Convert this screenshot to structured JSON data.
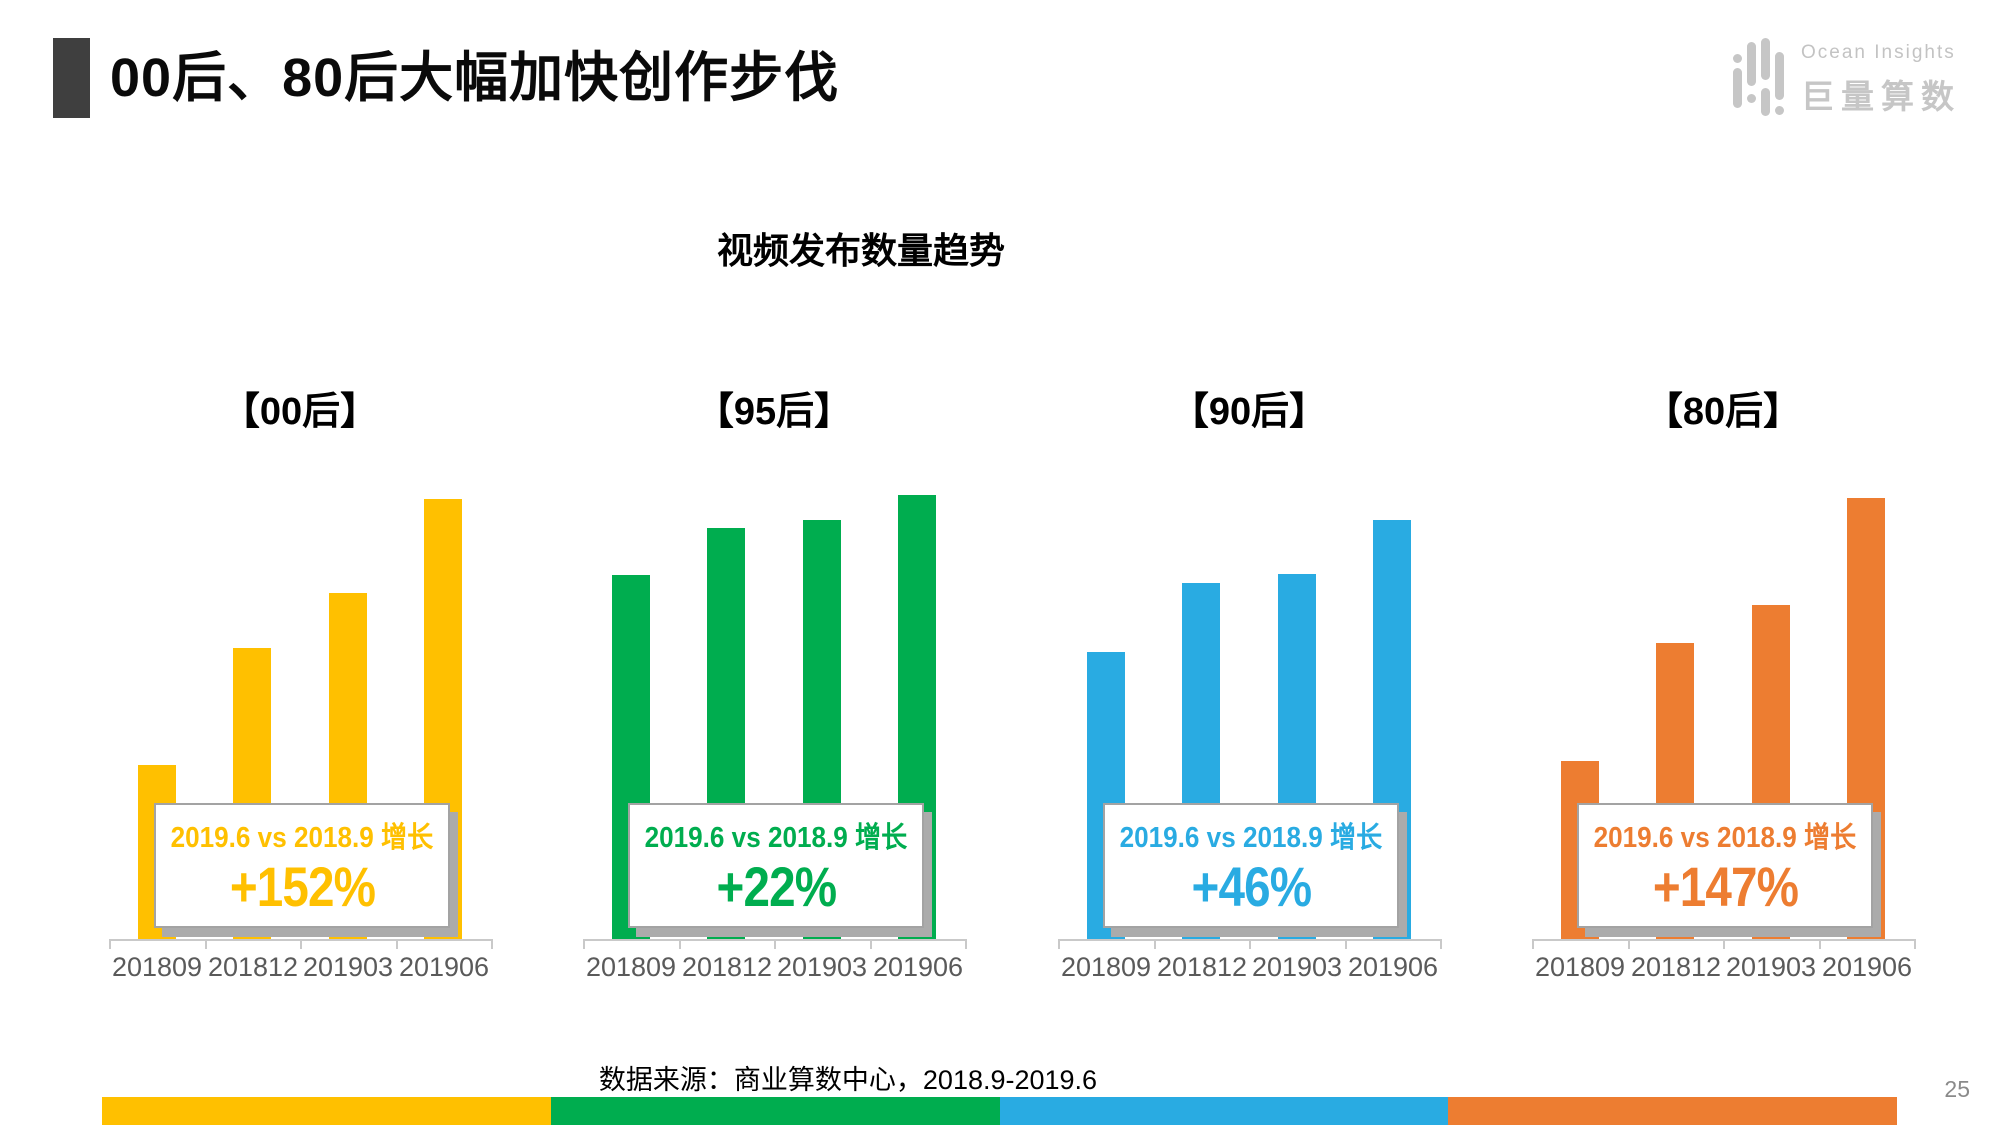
{
  "page": {
    "title": "00后、80后大幅加快创作步伐",
    "page_number": "25",
    "source_note": "数据来源：商业算数中心，2018.9-2019.6"
  },
  "logo": {
    "brand_en": "Ocean Insights",
    "brand_cn": "巨量算数",
    "color": "#c6c6c6"
  },
  "chart_data": {
    "type": "bar",
    "title": "视频发布数量趋势",
    "categories": [
      "201809",
      "201812",
      "201903",
      "201906"
    ],
    "value_basis": "relative index, 201809 = 100 (bars carry no data labels; values estimated from bar heights)",
    "annotation_label": "2019.6 vs 2018.9 增长",
    "grid": false,
    "legend": "none",
    "groups": [
      {
        "label": "【00后】",
        "color": "#FFC000",
        "values": [
          100,
          167,
          198,
          252
        ],
        "growth": "+152%"
      },
      {
        "label": "【95后】",
        "color": "#00AD4F",
        "values": [
          100,
          113,
          115,
          122
        ],
        "growth": "+22%"
      },
      {
        "label": "【90后】",
        "color": "#29ABE2",
        "values": [
          100,
          124,
          127,
          146
        ],
        "growth": "+46%"
      },
      {
        "label": "【80后】",
        "color": "#ED7D31",
        "values": [
          100,
          166,
          187,
          247
        ],
        "growth": "+147%"
      }
    ]
  },
  "footer": {
    "strip_colors": [
      "#FFC000",
      "#00AD4F",
      "#29ABE2",
      "#ED7D31"
    ]
  }
}
